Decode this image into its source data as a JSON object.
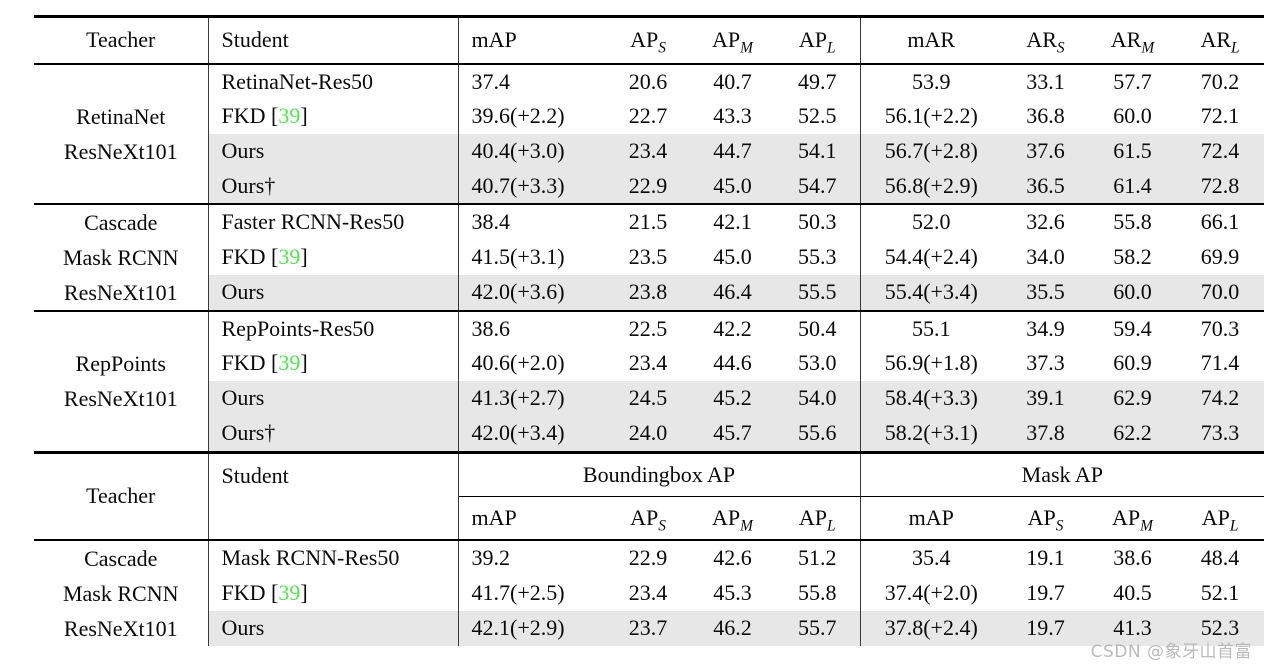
{
  "watermark": "CSDN @象牙山首富",
  "colors": {
    "row_shade": "#e7e7e7",
    "citation_green": "#54e354",
    "rule_black": "#000000",
    "watermark_gray": "#b3b3b3"
  },
  "table1": {
    "headers": [
      {
        "text": "Teacher"
      },
      {
        "text": "Student"
      },
      {
        "text": "mAP"
      },
      {
        "text": "AP",
        "sub": "S"
      },
      {
        "text": "AP",
        "sub": "M"
      },
      {
        "text": "AP",
        "sub": "L"
      },
      {
        "text": "mAR"
      },
      {
        "text": "AR",
        "sub": "S"
      },
      {
        "text": "AR",
        "sub": "M"
      },
      {
        "text": "AR",
        "sub": "L"
      }
    ],
    "groups": [
      {
        "teacher": [
          "RetinaNet",
          "ResNeXt101"
        ],
        "rows": [
          {
            "student": "RetinaNet-Res50",
            "shaded": false,
            "values": [
              "37.4",
              "20.6",
              "40.7",
              "49.7",
              "53.9",
              "33.1",
              "57.7",
              "70.2"
            ]
          },
          {
            "student": "FKD",
            "cite": "39",
            "shaded": false,
            "values": [
              "39.6(+2.2)",
              "22.7",
              "43.3",
              "52.5",
              "56.1(+2.2)",
              "36.8",
              "60.0",
              "72.1"
            ]
          },
          {
            "student": "Ours",
            "shaded": true,
            "values": [
              "40.4(+3.0)",
              "23.4",
              "44.7",
              "54.1",
              "56.7(+2.8)",
              "37.6",
              "61.5",
              "72.4"
            ]
          },
          {
            "student": "Ours†",
            "shaded": true,
            "values": [
              "40.7(+3.3)",
              "22.9",
              "45.0",
              "54.7",
              "56.8(+2.9)",
              "36.5",
              "61.4",
              "72.8"
            ]
          }
        ]
      },
      {
        "teacher": [
          "Cascade",
          "Mask RCNN",
          "ResNeXt101"
        ],
        "rows": [
          {
            "student": "Faster RCNN-Res50",
            "shaded": false,
            "values": [
              "38.4",
              "21.5",
              "42.1",
              "50.3",
              "52.0",
              "32.6",
              "55.8",
              "66.1"
            ]
          },
          {
            "student": "FKD",
            "cite": "39",
            "shaded": false,
            "values": [
              "41.5(+3.1)",
              "23.5",
              "45.0",
              "55.3",
              "54.4(+2.4)",
              "34.0",
              "58.2",
              "69.9"
            ]
          },
          {
            "student": "Ours",
            "shaded": true,
            "values": [
              "42.0(+3.6)",
              "23.8",
              "46.4",
              "55.5",
              "55.4(+3.4)",
              "35.5",
              "60.0",
              "70.0"
            ]
          }
        ]
      },
      {
        "teacher": [
          "RepPoints",
          "ResNeXt101"
        ],
        "rows": [
          {
            "student": "RepPoints-Res50",
            "shaded": false,
            "values": [
              "38.6",
              "22.5",
              "42.2",
              "50.4",
              "55.1",
              "34.9",
              "59.4",
              "70.3"
            ]
          },
          {
            "student": "FKD",
            "cite": "39",
            "shaded": false,
            "values": [
              "40.6(+2.0)",
              "23.4",
              "44.6",
              "53.0",
              "56.9(+1.8)",
              "37.3",
              "60.9",
              "71.4"
            ]
          },
          {
            "student": "Ours",
            "shaded": true,
            "values": [
              "41.3(+2.7)",
              "24.5",
              "45.2",
              "54.0",
              "58.4(+3.3)",
              "39.1",
              "62.9",
              "74.2"
            ]
          },
          {
            "student": "Ours†",
            "shaded": true,
            "values": [
              "42.0(+3.4)",
              "24.0",
              "45.7",
              "55.6",
              "58.2(+3.1)",
              "37.8",
              "62.2",
              "73.3"
            ]
          }
        ]
      }
    ]
  },
  "table2": {
    "corner_headers": [
      "Teacher",
      "Student"
    ],
    "span_headers": [
      "Boundingbox AP",
      "Mask AP"
    ],
    "subheaders": [
      {
        "text": "mAP"
      },
      {
        "text": "AP",
        "sub": "S"
      },
      {
        "text": "AP",
        "sub": "M"
      },
      {
        "text": "AP",
        "sub": "L"
      },
      {
        "text": "mAP"
      },
      {
        "text": "AP",
        "sub": "S"
      },
      {
        "text": "AP",
        "sub": "M"
      },
      {
        "text": "AP",
        "sub": "L"
      }
    ],
    "groups": [
      {
        "teacher": [
          "Cascade",
          "Mask RCNN",
          "ResNeXt101"
        ],
        "rows": [
          {
            "student": "Mask RCNN-Res50",
            "shaded": false,
            "values": [
              "39.2",
              "22.9",
              "42.6",
              "51.2",
              "35.4",
              "19.1",
              "38.6",
              "48.4"
            ]
          },
          {
            "student": "FKD",
            "cite": "39",
            "shaded": false,
            "values": [
              "41.7(+2.5)",
              "23.4",
              "45.3",
              "55.8",
              "37.4(+2.0)",
              "19.7",
              "40.5",
              "52.1"
            ]
          },
          {
            "student": "Ours",
            "shaded": true,
            "values": [
              "42.1(+2.9)",
              "23.7",
              "46.2",
              "55.7",
              "37.8(+2.4)",
              "19.7",
              "41.3",
              "52.3"
            ]
          }
        ]
      }
    ]
  }
}
